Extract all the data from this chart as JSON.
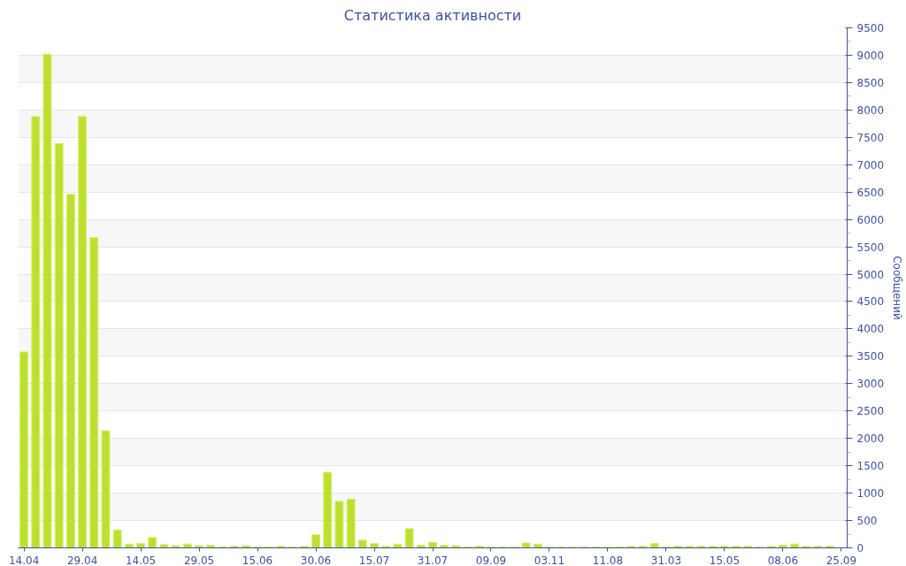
{
  "chart_data": {
    "type": "bar",
    "title": "Статистика активности",
    "y2label": "Сообщений",
    "categories": [
      "14.04",
      null,
      null,
      null,
      null,
      "29.04",
      null,
      null,
      null,
      null,
      "14.05",
      null,
      null,
      null,
      null,
      "29.05",
      null,
      null,
      null,
      null,
      "15.06",
      null,
      null,
      null,
      null,
      "30.06",
      null,
      null,
      null,
      null,
      "15.07",
      null,
      null,
      null,
      null,
      "31.07",
      null,
      null,
      null,
      null,
      "09.09",
      null,
      null,
      null,
      null,
      "03.11",
      null,
      null,
      null,
      null,
      "11.08",
      null,
      null,
      null,
      null,
      "31.03",
      null,
      null,
      null,
      null,
      "15.05",
      null,
      null,
      null,
      null,
      "08.06",
      null,
      null,
      null,
      null,
      "25.09"
    ],
    "series": [
      {
        "color": "#bde02c",
        "axis": "y2",
        "values": [
          3580,
          7880,
          9020,
          7390,
          6460,
          7880,
          5670,
          2140,
          330,
          70,
          80,
          190,
          60,
          40,
          70,
          40,
          50,
          20,
          30,
          40,
          20,
          20,
          30,
          20,
          30,
          240,
          1380,
          850,
          890,
          140,
          80,
          30,
          70,
          350,
          50,
          100,
          50,
          40,
          20,
          30,
          20,
          20,
          20,
          90,
          70,
          20,
          20,
          20,
          20,
          20,
          20,
          20,
          30,
          30,
          80,
          20,
          30,
          30,
          30,
          30,
          30,
          30,
          30,
          20,
          30,
          50,
          70,
          30,
          30,
          30,
          null
        ]
      }
    ],
    "y2lim": [
      0,
      9500
    ],
    "y2ticks": [
      0,
      500,
      1000,
      1500,
      2000,
      2500,
      3000,
      3500,
      4000,
      4500,
      5000,
      5500,
      6000,
      6500,
      7000,
      7500,
      8000,
      8500,
      9000,
      9500
    ],
    "grid": "y"
  }
}
